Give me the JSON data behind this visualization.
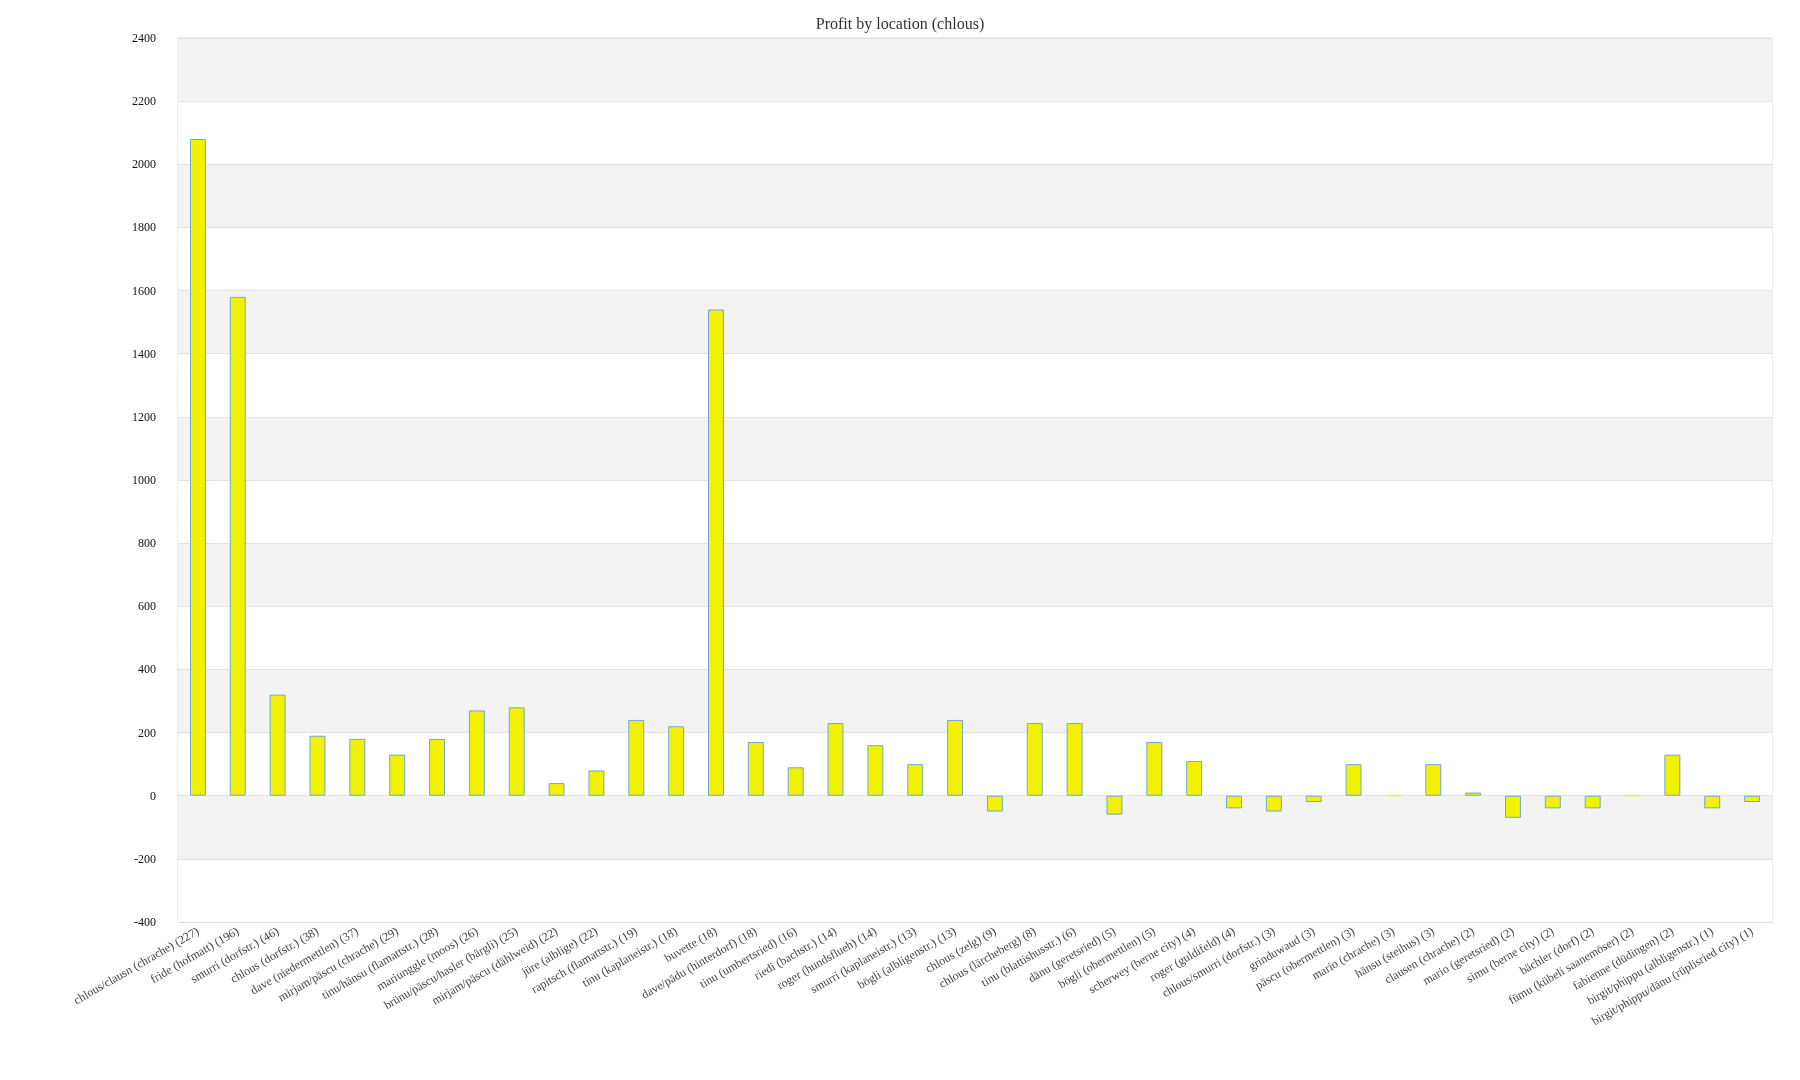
{
  "chart_data": {
    "type": "bar",
    "title": "Profit by location (chlous)",
    "categories": [
      "chlous/clausn (chrache) (227)",
      "fride (hofmatt) (196)",
      "smurri (dorfstr.) (46)",
      "chlous (dorfstr.) (38)",
      "dave (niedermettlen) (37)",
      "mirjam/päscu (chrache) (29)",
      "tinu/hänsu (flamattstr.) (28)",
      "mariunggle (moos) (26)",
      "brünu/päscu/hasler (bärgli) (25)",
      "mirjam/päscu (dählweid) (22)",
      "jüre (alblige) (22)",
      "rapitsch (flamattstr.) (19)",
      "tinu (kaplaneistr.) (18)",
      "buvette (18)",
      "dave/pädu (hinterdorf) (18)",
      "tinu (umbertsried) (16)",
      "riedi (bachstr.) (14)",
      "roger (hundsflueh) (14)",
      "smurri (kaplaneistr.) (13)",
      "bögli (albligenstr.) (13)",
      "chlous (zelg) (9)",
      "chlous (lärcheberg) (8)",
      "tinu (blattishusstr.) (6)",
      "dänu (geretsried) (5)",
      "bögli (obermettlen) (5)",
      "scherwey (berne city) (4)",
      "roger (guldifeld) (4)",
      "chlous/smurri (dorfstr.) (3)",
      "grinduwaud (3)",
      "päscu (obermettlen) (3)",
      "mario (chrache) (3)",
      "hänsu (steihus) (3)",
      "clausen (chrache) (2)",
      "mario (geretsried) (2)",
      "simu (berne city) (2)",
      "bächler (dorf) (2)",
      "fümu (kübeli saanemöser) (2)",
      "fabienne (düdingen) (2)",
      "birgit/phippu (albligenstr.) (1)",
      "birgit/phippu/dänu (rüplisried city) (1)"
    ],
    "values": [
      2080,
      1580,
      320,
      190,
      180,
      130,
      180,
      270,
      280,
      40,
      80,
      240,
      220,
      1540,
      170,
      90,
      230,
      160,
      100,
      240,
      -50,
      230,
      230,
      -60,
      170,
      110,
      -40,
      -50,
      -20,
      100,
      0,
      100,
      10,
      -70,
      -40,
      -40,
      0,
      130,
      -40,
      -20
    ],
    "color": "#f2f200",
    "ylim": [
      -400,
      2400
    ],
    "yticks": [
      -400,
      -200,
      0,
      200,
      400,
      600,
      800,
      1000,
      1200,
      1400,
      1600,
      1800,
      2000,
      2200,
      2400
    ],
    "grid": "y"
  }
}
